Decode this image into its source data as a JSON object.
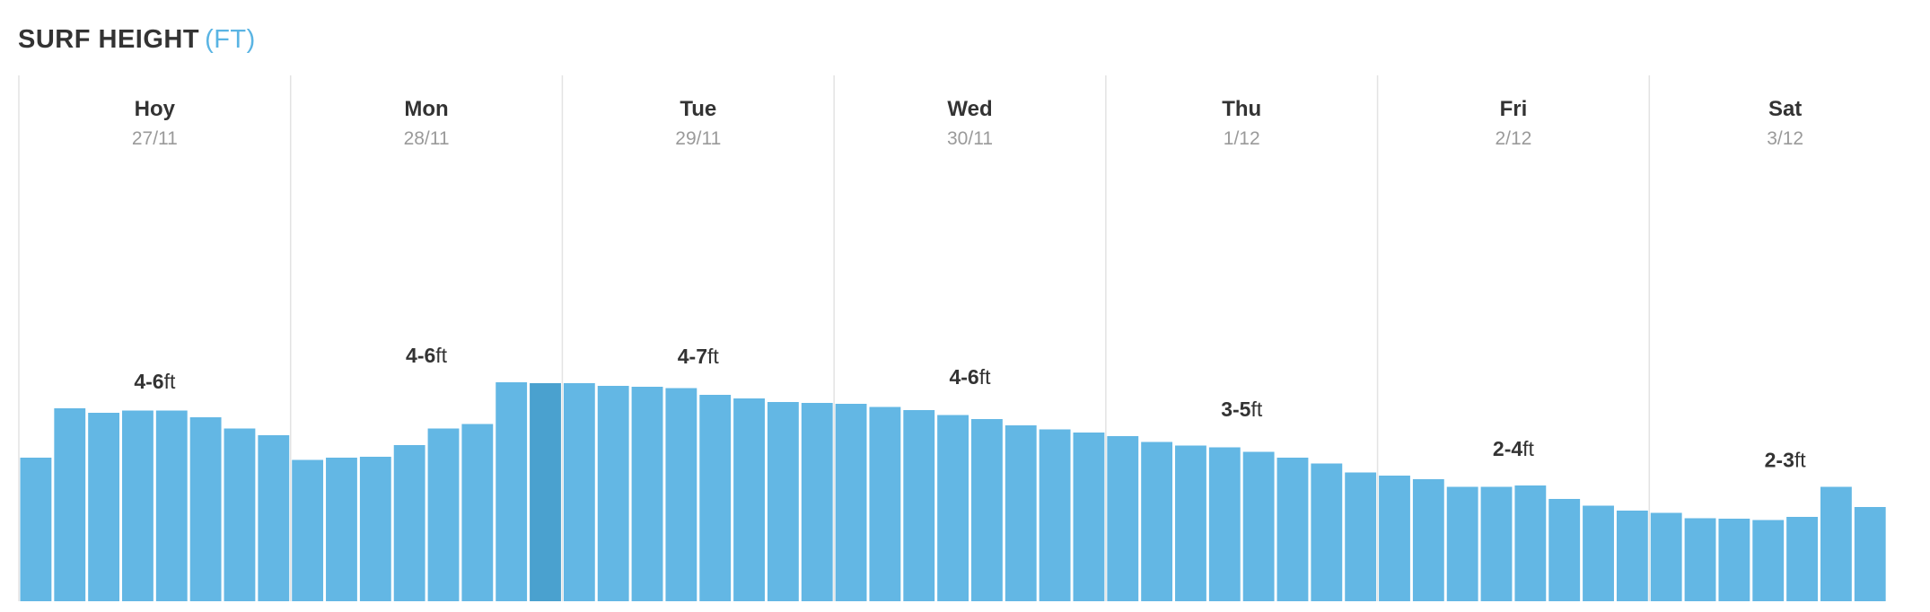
{
  "header": {
    "title": "SURF HEIGHT",
    "unit": "(FT)"
  },
  "colors": {
    "bar": "#63b7e4",
    "bar_current": "#4aa1cf",
    "separator": "#e3e3e3",
    "text": "#333333",
    "date": "#9a9a9a",
    "unit": "#5ab4e3"
  },
  "chart_data": {
    "type": "bar",
    "title": "SURF HEIGHT",
    "unit": "(FT)",
    "ylim": [
      0,
      8
    ],
    "grid": false,
    "current_index": 15,
    "days": [
      {
        "day": "Hoy",
        "date": "27/11",
        "range_num": "4-6",
        "range_unit": "ft",
        "values": [
          3.2,
          4.3,
          4.2,
          4.25,
          4.25,
          4.1,
          3.85,
          3.7
        ]
      },
      {
        "day": "Mon",
        "date": "28/11",
        "range_num": "4-6",
        "range_unit": "ft",
        "values": [
          3.15,
          3.2,
          3.22,
          3.48,
          3.85,
          3.95,
          4.88,
          4.86
        ]
      },
      {
        "day": "Tue",
        "date": "29/11",
        "range_num": "4-7",
        "range_unit": "ft",
        "values": [
          4.86,
          4.8,
          4.78,
          4.75,
          4.6,
          4.52,
          4.44,
          4.42
        ]
      },
      {
        "day": "Wed",
        "date": "30/11",
        "range_num": "4-6",
        "range_unit": "ft",
        "values": [
          4.4,
          4.33,
          4.26,
          4.15,
          4.06,
          3.92,
          3.83,
          3.76
        ]
      },
      {
        "day": "Thu",
        "date": "1/12",
        "range_num": "3-5",
        "range_unit": "ft",
        "values": [
          3.68,
          3.55,
          3.47,
          3.43,
          3.33,
          3.2,
          3.07,
          2.87
        ]
      },
      {
        "day": "Fri",
        "date": "2/12",
        "range_num": "2-4",
        "range_unit": "ft",
        "values": [
          2.8,
          2.72,
          2.55,
          2.55,
          2.58,
          2.28,
          2.13,
          2.02
        ]
      },
      {
        "day": "Sat",
        "date": "3/12",
        "range_num": "2-3",
        "range_unit": "ft",
        "values": [
          1.97,
          1.85,
          1.84,
          1.81,
          1.88,
          2.55,
          2.1
        ]
      }
    ]
  }
}
